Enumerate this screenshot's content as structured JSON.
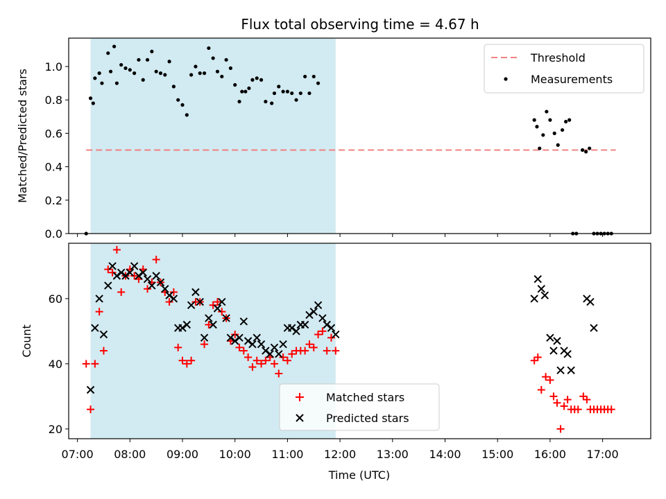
{
  "title": "Flux total observing time = 4.67 h",
  "colors": {
    "shade": "#add8e6",
    "threshold": "#f08080",
    "matched": "#ff0000",
    "predicted": "#000000",
    "measurement": "#000000"
  },
  "chart_data": [
    {
      "type": "scatter",
      "panel": "top",
      "ylabel": "Matched/Predicted stars",
      "xlim": [
        "06:50",
        "17:55"
      ],
      "ylim": [
        0,
        1.17
      ],
      "yticks": [
        0.0,
        0.2,
        0.4,
        0.6,
        0.8,
        1.0
      ],
      "ytick_labels": [
        "0.0",
        "0.2",
        "0.4",
        "0.6",
        "0.8",
        "1.0"
      ],
      "shaded_span": [
        "07:15",
        "11:55"
      ],
      "legend": {
        "position": "upper right",
        "entries": [
          "Threshold",
          "Measurements"
        ]
      },
      "threshold": {
        "name": "Threshold",
        "y": 0.5,
        "x": [
          "07:10",
          "17:15"
        ]
      },
      "series": [
        {
          "name": "Measurements",
          "points": [
            [
              "07:10",
              0.0
            ],
            [
              "07:15",
              0.81
            ],
            [
              "07:18",
              0.78
            ],
            [
              "07:20",
              0.93
            ],
            [
              "07:25",
              0.96
            ],
            [
              "07:28",
              0.9
            ],
            [
              "07:35",
              1.08
            ],
            [
              "07:38",
              0.97
            ],
            [
              "07:42",
              1.12
            ],
            [
              "07:45",
              0.9
            ],
            [
              "07:50",
              1.01
            ],
            [
              "07:55",
              0.99
            ],
            [
              "08:00",
              0.98
            ],
            [
              "08:05",
              0.96
            ],
            [
              "08:10",
              1.04
            ],
            [
              "08:15",
              0.92
            ],
            [
              "08:20",
              1.04
            ],
            [
              "08:25",
              1.09
            ],
            [
              "08:30",
              0.97
            ],
            [
              "08:35",
              0.96
            ],
            [
              "08:40",
              0.95
            ],
            [
              "08:45",
              1.03
            ],
            [
              "08:50",
              0.88
            ],
            [
              "08:55",
              0.8
            ],
            [
              "09:00",
              0.77
            ],
            [
              "09:05",
              0.71
            ],
            [
              "09:10",
              0.95
            ],
            [
              "09:15",
              1.0
            ],
            [
              "09:20",
              0.96
            ],
            [
              "09:25",
              0.96
            ],
            [
              "09:30",
              1.11
            ],
            [
              "09:35",
              1.05
            ],
            [
              "09:40",
              0.97
            ],
            [
              "09:45",
              0.94
            ],
            [
              "09:50",
              1.04
            ],
            [
              "09:55",
              0.99
            ],
            [
              "10:00",
              0.89
            ],
            [
              "10:05",
              0.79
            ],
            [
              "10:08",
              0.85
            ],
            [
              "10:12",
              0.85
            ],
            [
              "10:16",
              0.87
            ],
            [
              "10:20",
              0.92
            ],
            [
              "10:25",
              0.93
            ],
            [
              "10:30",
              0.92
            ],
            [
              "10:35",
              0.79
            ],
            [
              "10:42",
              0.78
            ],
            [
              "10:45",
              0.84
            ],
            [
              "10:50",
              0.88
            ],
            [
              "10:55",
              0.85
            ],
            [
              "11:00",
              0.85
            ],
            [
              "11:05",
              0.84
            ],
            [
              "11:10",
              0.8
            ],
            [
              "11:15",
              0.84
            ],
            [
              "11:20",
              0.94
            ],
            [
              "11:25",
              0.84
            ],
            [
              "11:30",
              0.94
            ],
            [
              "11:35",
              0.9
            ],
            [
              "15:42",
              0.68
            ],
            [
              "15:45",
              0.64
            ],
            [
              "15:48",
              0.51
            ],
            [
              "15:52",
              0.59
            ],
            [
              "15:56",
              0.73
            ],
            [
              "16:00",
              0.68
            ],
            [
              "16:05",
              0.6
            ],
            [
              "16:09",
              0.53
            ],
            [
              "16:14",
              0.62
            ],
            [
              "16:18",
              0.67
            ],
            [
              "16:22",
              0.68
            ],
            [
              "16:26",
              0.0
            ],
            [
              "16:30",
              0.0
            ],
            [
              "16:37",
              0.5
            ],
            [
              "16:41",
              0.49
            ],
            [
              "16:45",
              0.51
            ],
            [
              "16:50",
              0.0
            ],
            [
              "16:54",
              0.0
            ],
            [
              "16:58",
              0.0
            ],
            [
              "17:02",
              0.0
            ],
            [
              "17:06",
              0.0
            ],
            [
              "17:10",
              0.0
            ]
          ]
        }
      ]
    },
    {
      "type": "scatter",
      "panel": "bottom",
      "xlabel": "Time (UTC)",
      "ylabel": "Count",
      "xlim": [
        "06:50",
        "17:55"
      ],
      "ylim": [
        17,
        77
      ],
      "xticks": [
        "07:00",
        "08:00",
        "09:00",
        "10:00",
        "11:00",
        "12:00",
        "13:00",
        "14:00",
        "15:00",
        "16:00",
        "17:00"
      ],
      "xtick_labels": [
        "07:00",
        "08:00",
        "09:00",
        "10:00",
        "11:00",
        "12:00",
        "13:00",
        "14:00",
        "15:00",
        "16:00",
        "17:00"
      ],
      "yticks": [
        20,
        40,
        60
      ],
      "ytick_labels": [
        "20",
        "40",
        "60"
      ],
      "shaded_span": [
        "07:15",
        "11:55"
      ],
      "legend": {
        "position": "lower center",
        "entries": [
          "Matched stars",
          "Predicted stars"
        ]
      },
      "series": [
        {
          "name": "Matched stars",
          "marker": "+",
          "points": [
            [
              "07:10",
              40
            ],
            [
              "07:15",
              26
            ],
            [
              "07:20",
              40
            ],
            [
              "07:25",
              56
            ],
            [
              "07:30",
              44
            ],
            [
              "07:35",
              69
            ],
            [
              "07:40",
              68
            ],
            [
              "07:45",
              75
            ],
            [
              "07:50",
              62
            ],
            [
              "07:55",
              67
            ],
            [
              "08:00",
              69
            ],
            [
              "08:05",
              67
            ],
            [
              "08:10",
              66
            ],
            [
              "08:15",
              69
            ],
            [
              "08:20",
              63
            ],
            [
              "08:25",
              65
            ],
            [
              "08:30",
              72
            ],
            [
              "08:35",
              65
            ],
            [
              "08:40",
              62
            ],
            [
              "08:45",
              59
            ],
            [
              "08:50",
              62
            ],
            [
              "08:55",
              45
            ],
            [
              "09:00",
              41
            ],
            [
              "09:05",
              40
            ],
            [
              "09:10",
              41
            ],
            [
              "09:15",
              59
            ],
            [
              "09:20",
              59
            ],
            [
              "09:25",
              46
            ],
            [
              "09:30",
              52
            ],
            [
              "09:35",
              58
            ],
            [
              "09:40",
              59
            ],
            [
              "09:45",
              56
            ],
            [
              "09:50",
              54
            ],
            [
              "09:55",
              47
            ],
            [
              "10:00",
              49
            ],
            [
              "10:05",
              45
            ],
            [
              "10:10",
              44
            ],
            [
              "10:15",
              42
            ],
            [
              "10:20",
              39
            ],
            [
              "10:25",
              41
            ],
            [
              "10:30",
              40
            ],
            [
              "10:35",
              41
            ],
            [
              "10:40",
              42
            ],
            [
              "10:45",
              40
            ],
            [
              "10:50",
              37
            ],
            [
              "10:55",
              42
            ],
            [
              "11:00",
              41
            ],
            [
              "11:05",
              43
            ],
            [
              "11:10",
              44
            ],
            [
              "11:15",
              44
            ],
            [
              "11:20",
              44
            ],
            [
              "11:25",
              46
            ],
            [
              "11:30",
              45
            ],
            [
              "11:35",
              49
            ],
            [
              "11:40",
              50
            ],
            [
              "11:45",
              44
            ],
            [
              "11:50",
              48
            ],
            [
              "11:55",
              44
            ],
            [
              "15:42",
              41
            ],
            [
              "15:46",
              42
            ],
            [
              "15:50",
              32
            ],
            [
              "15:55",
              36
            ],
            [
              "16:00",
              35
            ],
            [
              "16:04",
              30
            ],
            [
              "16:08",
              28
            ],
            [
              "16:12",
              20
            ],
            [
              "16:16",
              27
            ],
            [
              "16:20",
              29
            ],
            [
              "16:24",
              26
            ],
            [
              "16:28",
              26
            ],
            [
              "16:32",
              26
            ],
            [
              "16:38",
              30
            ],
            [
              "16:42",
              29
            ],
            [
              "16:46",
              26
            ],
            [
              "16:50",
              26
            ],
            [
              "16:54",
              26
            ],
            [
              "16:58",
              26
            ],
            [
              "17:02",
              26
            ],
            [
              "17:06",
              26
            ],
            [
              "17:10",
              26
            ]
          ]
        },
        {
          "name": "Predicted stars",
          "marker": "x",
          "points": [
            [
              "07:15",
              32
            ],
            [
              "07:20",
              51
            ],
            [
              "07:25",
              60
            ],
            [
              "07:30",
              49
            ],
            [
              "07:35",
              64
            ],
            [
              "07:40",
              70
            ],
            [
              "07:45",
              67
            ],
            [
              "07:50",
              68
            ],
            [
              "07:55",
              67
            ],
            [
              "08:00",
              68
            ],
            [
              "08:05",
              70
            ],
            [
              "08:10",
              67
            ],
            [
              "08:15",
              68
            ],
            [
              "08:20",
              66
            ],
            [
              "08:25",
              64
            ],
            [
              "08:30",
              67
            ],
            [
              "08:35",
              65
            ],
            [
              "08:40",
              63
            ],
            [
              "08:45",
              61
            ],
            [
              "08:50",
              60
            ],
            [
              "08:55",
              51
            ],
            [
              "09:00",
              51
            ],
            [
              "09:05",
              52
            ],
            [
              "09:10",
              58
            ],
            [
              "09:15",
              62
            ],
            [
              "09:20",
              59
            ],
            [
              "09:25",
              48
            ],
            [
              "09:30",
              54
            ],
            [
              "09:35",
              52
            ],
            [
              "09:40",
              57
            ],
            [
              "09:45",
              59
            ],
            [
              "09:50",
              54
            ],
            [
              "09:55",
              48
            ],
            [
              "10:00",
              47
            ],
            [
              "10:05",
              48
            ],
            [
              "10:10",
              53
            ],
            [
              "10:15",
              47
            ],
            [
              "10:20",
              46
            ],
            [
              "10:25",
              48
            ],
            [
              "10:30",
              46
            ],
            [
              "10:35",
              44
            ],
            [
              "10:40",
              43
            ],
            [
              "10:45",
              45
            ],
            [
              "10:50",
              43
            ],
            [
              "10:55",
              46
            ],
            [
              "11:00",
              51
            ],
            [
              "11:05",
              51
            ],
            [
              "11:10",
              50
            ],
            [
              "11:15",
              52
            ],
            [
              "11:20",
              52
            ],
            [
              "11:25",
              55
            ],
            [
              "11:30",
              56
            ],
            [
              "11:35",
              58
            ],
            [
              "11:40",
              54
            ],
            [
              "11:45",
              52
            ],
            [
              "11:50",
              51
            ],
            [
              "11:55",
              49
            ],
            [
              "15:42",
              60
            ],
            [
              "15:46",
              66
            ],
            [
              "15:50",
              63
            ],
            [
              "15:54",
              61
            ],
            [
              "16:00",
              48
            ],
            [
              "16:04",
              44
            ],
            [
              "16:08",
              47
            ],
            [
              "16:12",
              38
            ],
            [
              "16:16",
              44
            ],
            [
              "16:20",
              43
            ],
            [
              "16:24",
              38
            ],
            [
              "16:42",
              60
            ],
            [
              "16:46",
              59
            ],
            [
              "16:50",
              51
            ]
          ]
        }
      ]
    }
  ]
}
